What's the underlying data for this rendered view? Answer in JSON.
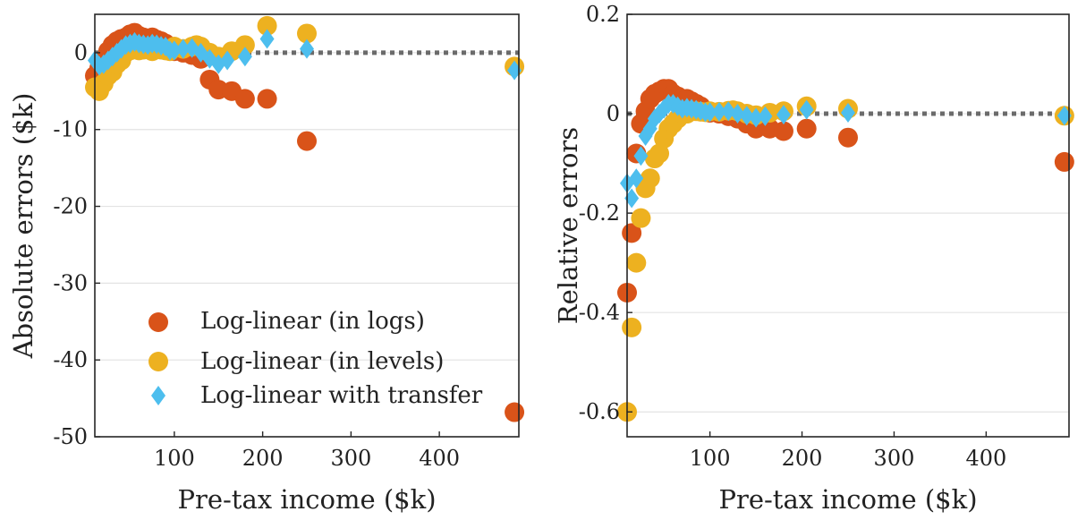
{
  "colors": {
    "logs": "#D95319",
    "levels": "#EDB120",
    "transfer": "#4DBEEE",
    "zero_line": "#6b6b6b"
  },
  "legend": {
    "items": [
      {
        "label": "Log-linear (in logs)",
        "marker": "circle",
        "color": "#D95319"
      },
      {
        "label": "Log-linear (in levels)",
        "marker": "circle",
        "color": "#EDB120"
      },
      {
        "label": "Log-linear with transfer",
        "marker": "diamond",
        "color": "#4DBEEE"
      }
    ]
  },
  "chart_data": [
    {
      "type": "scatter",
      "ylabel": "Absolute errors ($k)",
      "xlabel": "Pre-tax income ($k)",
      "xlim": [
        10,
        490
      ],
      "ylim": [
        -50,
        5
      ],
      "xticks": [
        100,
        200,
        300,
        400
      ],
      "yticks": [
        0,
        -10,
        -20,
        -30,
        -40,
        -50
      ],
      "grid": "horizontal",
      "legend_position": "bottom-left",
      "reference_line": 0,
      "series": [
        {
          "name": "Log-linear (in logs)",
          "marker": "circle",
          "color": "#D95319",
          "x": [
            10,
            15,
            20,
            25,
            30,
            35,
            40,
            45,
            50,
            55,
            60,
            65,
            70,
            75,
            80,
            85,
            90,
            95,
            100,
            110,
            120,
            130,
            140,
            150,
            165,
            180,
            205,
            250,
            485
          ],
          "y": [
            -3,
            -2,
            -1,
            0.2,
            1,
            1.5,
            1.8,
            2,
            2.4,
            2.6,
            2.2,
            2,
            1.7,
            2,
            1.7,
            1.5,
            1.2,
            0.5,
            0.2,
            0,
            -0.3,
            -0.8,
            -3.5,
            -4.8,
            -5,
            -6,
            -6,
            -11.5,
            -46.8
          ]
        },
        {
          "name": "Log-linear (in levels)",
          "marker": "circle",
          "color": "#EDB120",
          "x": [
            10,
            15,
            20,
            25,
            30,
            35,
            40,
            45,
            50,
            55,
            60,
            65,
            70,
            75,
            80,
            85,
            90,
            95,
            100,
            110,
            120,
            125,
            130,
            140,
            150,
            165,
            180,
            205,
            250,
            485
          ],
          "y": [
            -4.5,
            -5,
            -4,
            -3,
            -2.5,
            -1.5,
            -1,
            0,
            0.3,
            0.5,
            0.3,
            0.4,
            0.5,
            0.2,
            0.6,
            0.4,
            0.3,
            0.2,
            0.8,
            0.5,
            0.8,
            1,
            0.8,
            0,
            -0.5,
            0.2,
            1,
            3.5,
            2.5,
            -1.8
          ]
        },
        {
          "name": "Log-linear with transfer",
          "marker": "diamond",
          "color": "#4DBEEE",
          "x": [
            10,
            15,
            20,
            25,
            30,
            35,
            40,
            45,
            50,
            55,
            60,
            65,
            70,
            75,
            80,
            85,
            90,
            95,
            100,
            110,
            120,
            130,
            140,
            150,
            160,
            180,
            205,
            250,
            485
          ],
          "y": [
            -1,
            -1.7,
            -1.5,
            -1,
            -0.5,
            0,
            0.5,
            1,
            1.2,
            1.4,
            1.2,
            1.1,
            1,
            1.2,
            1.1,
            0.9,
            0.8,
            0.3,
            0.3,
            0.5,
            0.6,
            0,
            -0.8,
            -1.5,
            -1,
            -0.5,
            1.8,
            0.5,
            -2.3
          ]
        }
      ]
    },
    {
      "type": "scatter",
      "ylabel": "Relative errors",
      "xlabel": "Pre-tax income ($k)",
      "xlim": [
        10,
        490
      ],
      "ylim": [
        -0.65,
        0.2
      ],
      "xticks": [
        100,
        200,
        300,
        400
      ],
      "yticks": [
        0.2,
        0,
        -0.2,
        -0.4,
        -0.6
      ],
      "grid": "horizontal",
      "reference_line": 0,
      "series": [
        {
          "name": "Log-linear (in logs)",
          "marker": "circle",
          "color": "#D95319",
          "x": [
            10,
            15,
            20,
            25,
            30,
            35,
            40,
            45,
            50,
            55,
            60,
            65,
            70,
            75,
            80,
            85,
            90,
            95,
            100,
            110,
            120,
            130,
            140,
            150,
            165,
            180,
            205,
            250,
            485
          ],
          "y": [
            -0.36,
            -0.24,
            -0.08,
            -0.02,
            0.005,
            0.03,
            0.04,
            0.045,
            0.05,
            0.05,
            0.04,
            0.035,
            0.03,
            0.03,
            0.025,
            0.02,
            0.015,
            0.005,
            0.002,
            0,
            -0.005,
            -0.01,
            -0.02,
            -0.03,
            -0.03,
            -0.035,
            -0.03,
            -0.048,
            -0.097
          ]
        },
        {
          "name": "Log-linear (in levels)",
          "marker": "circle",
          "color": "#EDB120",
          "x": [
            10,
            15,
            20,
            25,
            30,
            35,
            40,
            45,
            50,
            55,
            60,
            65,
            70,
            75,
            80,
            85,
            90,
            95,
            100,
            110,
            120,
            125,
            130,
            140,
            150,
            165,
            180,
            205,
            250,
            485
          ],
          "y": [
            -0.6,
            -0.43,
            -0.3,
            -0.21,
            -0.15,
            -0.13,
            -0.09,
            -0.08,
            -0.05,
            -0.03,
            -0.02,
            -0.01,
            0,
            0,
            0.005,
            0.005,
            0.004,
            0.003,
            0.005,
            0.004,
            0.006,
            0.007,
            0.005,
            0,
            -0.003,
            0.002,
            0.005,
            0.015,
            0.01,
            -0.004
          ]
        },
        {
          "name": "Log-linear with transfer",
          "marker": "diamond",
          "color": "#4DBEEE",
          "x": [
            10,
            15,
            20,
            25,
            30,
            35,
            40,
            45,
            50,
            55,
            60,
            65,
            70,
            75,
            80,
            85,
            90,
            95,
            100,
            110,
            120,
            130,
            140,
            150,
            160,
            180,
            205,
            250,
            485
          ],
          "y": [
            -0.14,
            -0.17,
            -0.13,
            -0.085,
            -0.045,
            -0.03,
            -0.01,
            0,
            0.01,
            0.02,
            0.02,
            0.015,
            0.01,
            0.012,
            0.01,
            0.008,
            0.006,
            0.003,
            0.003,
            0.004,
            0.005,
            0,
            -0.004,
            -0.008,
            -0.005,
            -0.002,
            0.008,
            0.002,
            -0.004
          ]
        }
      ]
    }
  ]
}
